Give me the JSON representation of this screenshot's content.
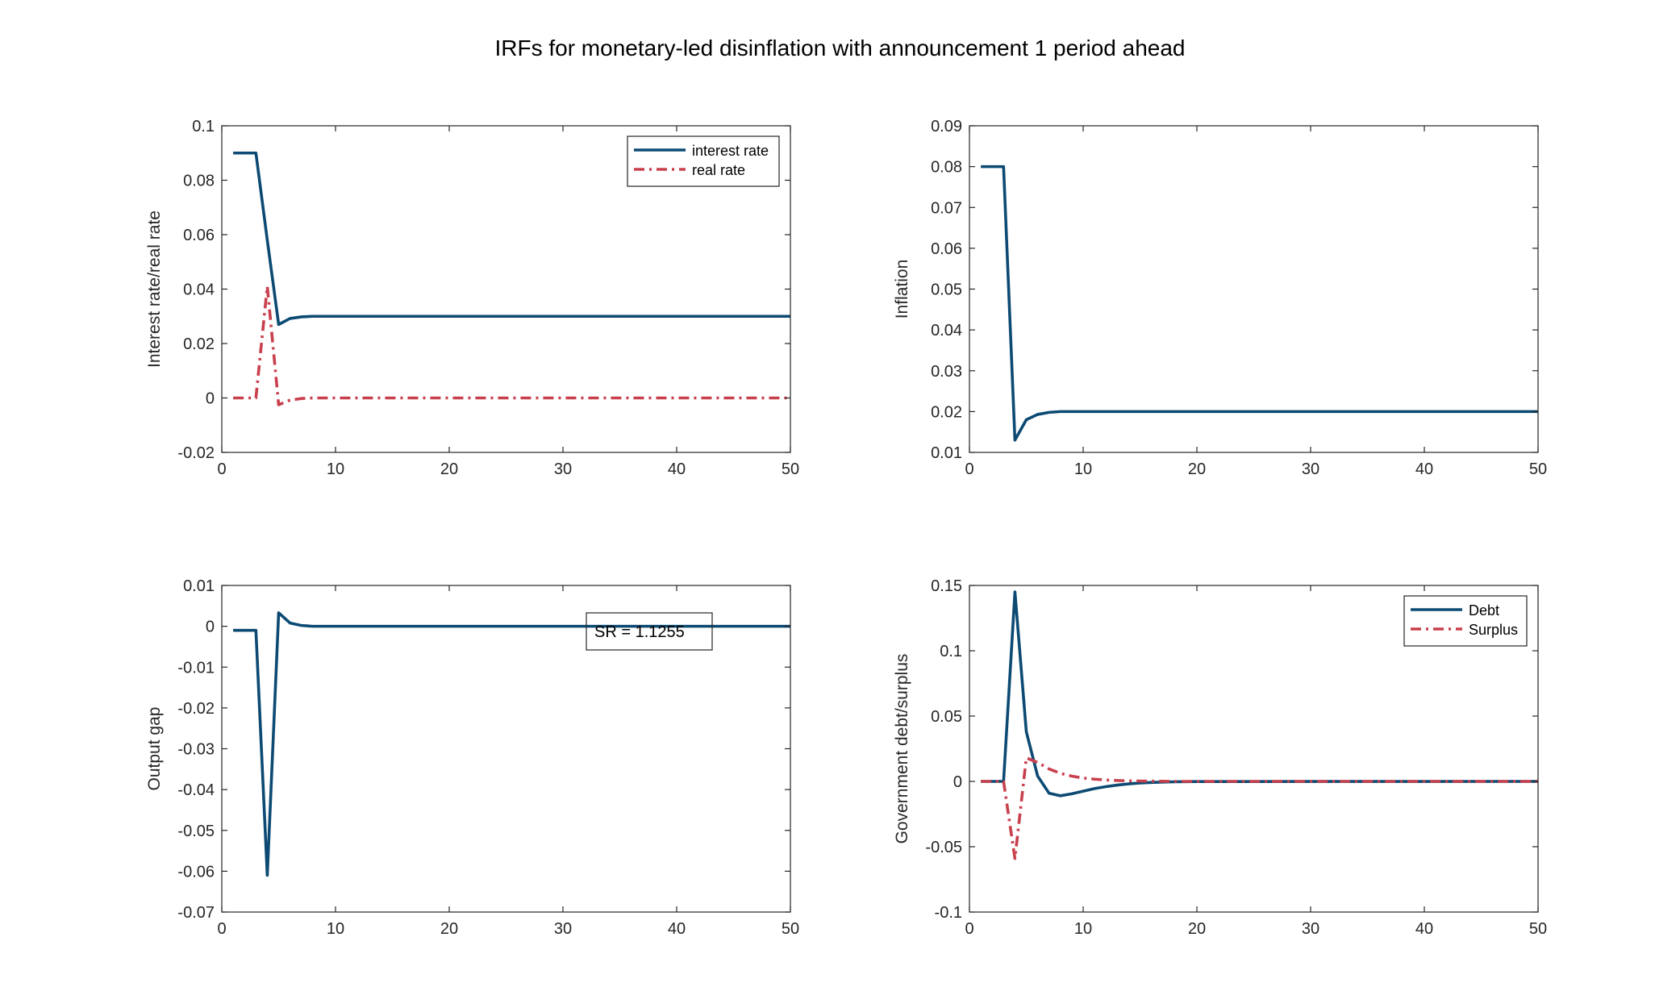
{
  "figure": {
    "title": "IRFs for monetary-led disinflation with announcement 1 period ahead"
  },
  "colors": {
    "blue": "#0c4a73",
    "red": "#c8404d",
    "axis": "#262626"
  },
  "chart_data": [
    {
      "type": "line",
      "ylabel": "Interest rate/real rate",
      "xlabel": "",
      "xlim": [
        0,
        50
      ],
      "ylim": [
        -0.02,
        0.1
      ],
      "xticks": [
        0,
        10,
        20,
        30,
        40,
        50
      ],
      "yticks": [
        -0.02,
        0,
        0.02,
        0.04,
        0.06,
        0.08,
        0.1
      ],
      "ytick_labels": [
        "-0.02",
        "0",
        "0.02",
        "0.04",
        "0.06",
        "0.08",
        "0.1"
      ],
      "legend": {
        "position": "top-right"
      },
      "series": [
        {
          "name": "interest rate",
          "style": "solid",
          "color": "#0c4a73",
          "x": [
            1,
            2,
            3,
            4,
            5,
            6,
            7,
            8,
            9,
            10,
            50
          ],
          "y": [
            0.09,
            0.09,
            0.09,
            0.058,
            0.027,
            0.0292,
            0.0298,
            0.03,
            0.03,
            0.03,
            0.03
          ]
        },
        {
          "name": "real rate",
          "style": "dashdot",
          "color": "#c8404d",
          "x": [
            1,
            2,
            3,
            4,
            5,
            6,
            7,
            8,
            9,
            10,
            50
          ],
          "y": [
            0,
            0,
            0,
            0.041,
            -0.0025,
            -0.0008,
            -0.0002,
            0,
            0,
            0,
            0
          ]
        }
      ]
    },
    {
      "type": "line",
      "ylabel": "Inflation",
      "xlabel": "",
      "xlim": [
        0,
        50
      ],
      "ylim": [
        0.01,
        0.09
      ],
      "xticks": [
        0,
        10,
        20,
        30,
        40,
        50
      ],
      "yticks": [
        0.01,
        0.02,
        0.03,
        0.04,
        0.05,
        0.06,
        0.07,
        0.08,
        0.09
      ],
      "ytick_labels": [
        "0.01",
        "0.02",
        "0.03",
        "0.04",
        "0.05",
        "0.06",
        "0.07",
        "0.08",
        "0.09"
      ],
      "series": [
        {
          "style": "solid",
          "color": "#0c4a73",
          "x": [
            1,
            2,
            3,
            4,
            5,
            6,
            7,
            8,
            9,
            10,
            50
          ],
          "y": [
            0.08,
            0.08,
            0.08,
            0.013,
            0.018,
            0.0193,
            0.0198,
            0.02,
            0.02,
            0.02,
            0.02
          ]
        }
      ]
    },
    {
      "type": "line",
      "ylabel": "Output gap",
      "xlabel": "",
      "xlim": [
        0,
        50
      ],
      "ylim": [
        -0.07,
        0.01
      ],
      "xticks": [
        0,
        10,
        20,
        30,
        40,
        50
      ],
      "yticks": [
        -0.07,
        -0.06,
        -0.05,
        -0.04,
        -0.03,
        -0.02,
        -0.01,
        0,
        0.01
      ],
      "ytick_labels": [
        "-0.07",
        "-0.06",
        "-0.05",
        "-0.04",
        "-0.03",
        "-0.02",
        "-0.01",
        "0",
        "0.01"
      ],
      "annotation": {
        "text": "SR = 1.1255"
      },
      "series": [
        {
          "style": "solid",
          "color": "#0c4a73",
          "x": [
            1,
            2,
            3,
            4,
            5,
            6,
            7,
            8,
            9,
            10,
            50
          ],
          "y": [
            -0.001,
            -0.001,
            -0.001,
            -0.061,
            0.0033,
            0.0008,
            0.0002,
            0,
            0,
            0,
            0
          ]
        }
      ]
    },
    {
      "type": "line",
      "ylabel": "Government debt/surplus",
      "xlabel": "",
      "xlim": [
        0,
        50
      ],
      "ylim": [
        -0.1,
        0.15
      ],
      "xticks": [
        0,
        10,
        20,
        30,
        40,
        50
      ],
      "yticks": [
        -0.1,
        -0.05,
        0,
        0.05,
        0.1,
        0.15
      ],
      "ytick_labels": [
        "-0.1",
        "-0.05",
        "0",
        "0.05",
        "0.1",
        "0.15"
      ],
      "legend": {
        "position": "top-right"
      },
      "series": [
        {
          "name": "Debt",
          "style": "solid",
          "color": "#0c4a73",
          "x": [
            1,
            2,
            3,
            4,
            5,
            6,
            7,
            8,
            9,
            10,
            11,
            12,
            13,
            14,
            15,
            16,
            17,
            18,
            19,
            20,
            50
          ],
          "y": [
            0,
            0,
            0,
            0.145,
            0.038,
            0.004,
            -0.009,
            -0.011,
            -0.0095,
            -0.0075,
            -0.0055,
            -0.004,
            -0.0028,
            -0.0019,
            -0.0012,
            -0.0008,
            -0.0005,
            -0.0003,
            -0.0002,
            -0.0001,
            0
          ]
        },
        {
          "name": "Surplus",
          "style": "dashdot",
          "color": "#c8404d",
          "x": [
            1,
            2,
            3,
            4,
            5,
            6,
            7,
            8,
            9,
            10,
            11,
            12,
            13,
            14,
            15,
            16,
            17,
            18,
            20,
            50
          ],
          "y": [
            0,
            0,
            0,
            -0.059,
            0.018,
            0.0145,
            0.0095,
            0.0062,
            0.004,
            0.0026,
            0.0017,
            0.0011,
            0.0007,
            0.0004,
            0.0003,
            0.0002,
            0.0001,
            0,
            0,
            0
          ]
        }
      ]
    }
  ]
}
